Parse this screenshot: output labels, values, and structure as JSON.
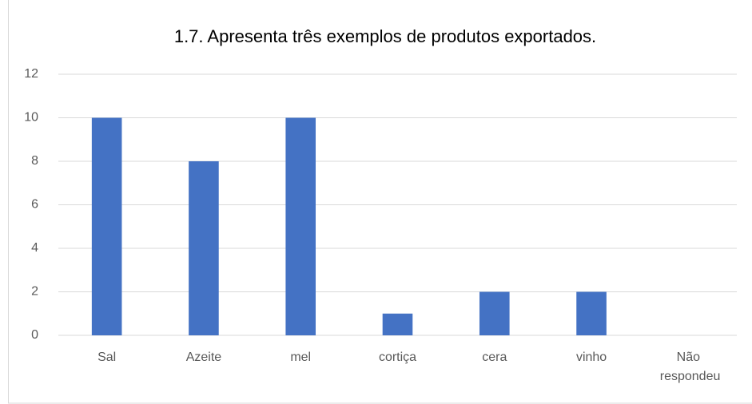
{
  "chart_data": {
    "type": "bar",
    "title": "1.7. Apresenta três exemplos de produtos exportados.",
    "categories": [
      "Sal",
      "Azeite",
      "mel",
      "cortiça",
      "cera",
      "vinho",
      "Não respondeu"
    ],
    "values": [
      10,
      8,
      10,
      1,
      2,
      2,
      0
    ],
    "color": "#4472c4",
    "ylim": [
      0,
      12
    ],
    "yticks": [
      0,
      2,
      4,
      6,
      8,
      10,
      12
    ],
    "grid": true
  }
}
